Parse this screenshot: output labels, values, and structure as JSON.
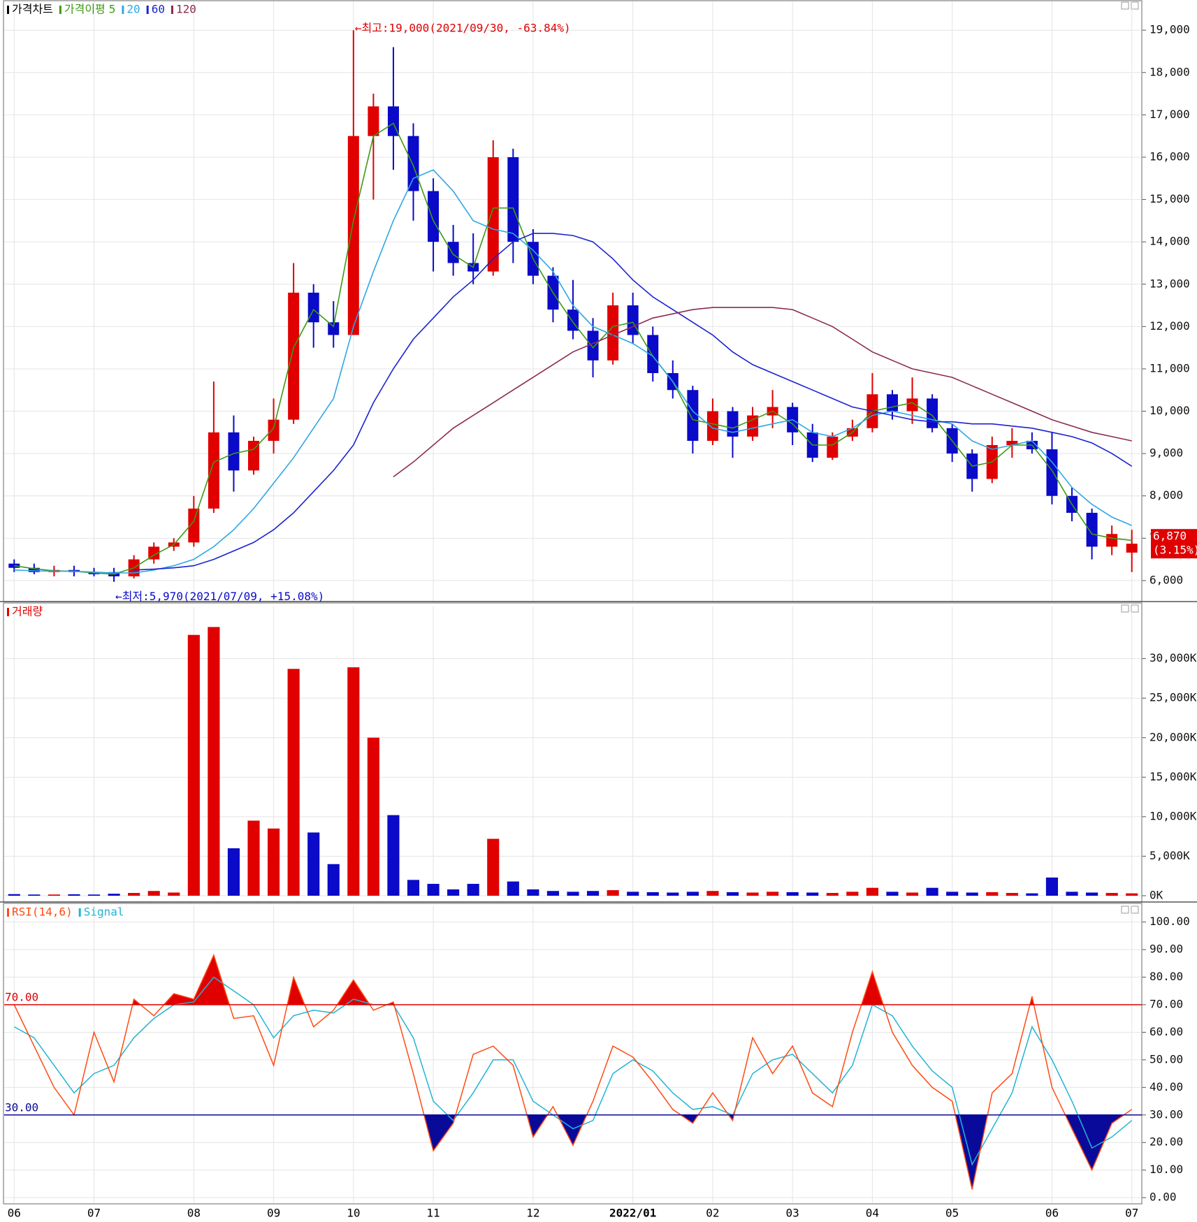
{
  "chart_data": [
    {
      "type": "candlestick",
      "title": "가격차트",
      "ma_label": "가격이평",
      "categories": [
        "06",
        null,
        null,
        null,
        "07",
        null,
        null,
        null,
        null,
        "08",
        null,
        null,
        null,
        "09",
        null,
        null,
        null,
        "10",
        null,
        null,
        null,
        "11",
        null,
        null,
        null,
        null,
        "12",
        null,
        null,
        null,
        null,
        "2022/01",
        null,
        null,
        null,
        "02",
        null,
        null,
        null,
        "03",
        null,
        null,
        null,
        "04",
        null,
        null,
        null,
        "05",
        null,
        null,
        null,
        null,
        "06",
        null,
        null,
        null,
        "07"
      ],
      "open": [
        6400,
        6300,
        6200,
        6250,
        6200,
        6200,
        6100,
        6500,
        6800,
        6900,
        7700,
        9500,
        8600,
        9300,
        9800,
        12800,
        12100,
        11800,
        16500,
        17200,
        16500,
        15200,
        14000,
        13500,
        13300,
        16000,
        14000,
        13200,
        12400,
        11900,
        11200,
        12500,
        11800,
        10900,
        10500,
        9300,
        10000,
        9400,
        9900,
        10100,
        9500,
        8900,
        9400,
        9600,
        10400,
        10000,
        10300,
        9600,
        9000,
        8400,
        9200,
        9300,
        9100,
        8000,
        7600,
        6800,
        6660
      ],
      "high": [
        6500,
        6400,
        6350,
        6350,
        6300,
        6300,
        6600,
        6900,
        7000,
        8000,
        10700,
        9900,
        9400,
        10300,
        13500,
        13000,
        12600,
        19000,
        17500,
        18600,
        16800,
        15500,
        14400,
        14200,
        16400,
        16200,
        14300,
        13400,
        13100,
        12200,
        12800,
        12800,
        12000,
        11200,
        10600,
        10300,
        10100,
        10100,
        10500,
        10200,
        9700,
        9500,
        9800,
        10900,
        10500,
        10800,
        10400,
        9700,
        9100,
        9400,
        9600,
        9500,
        9500,
        8200,
        7700,
        7300,
        7200
      ],
      "low": [
        6200,
        6150,
        6100,
        6100,
        6100,
        5970,
        6050,
        6400,
        6700,
        6800,
        7600,
        8100,
        8500,
        9000,
        9700,
        11500,
        11500,
        11800,
        15000,
        15700,
        14500,
        13300,
        13200,
        13000,
        13200,
        13500,
        13000,
        12100,
        11700,
        10800,
        11100,
        11600,
        10700,
        10300,
        9000,
        9200,
        8900,
        9300,
        9600,
        9200,
        8800,
        8850,
        9300,
        9500,
        9800,
        9700,
        9500,
        8800,
        8100,
        8300,
        8900,
        9000,
        7800,
        7400,
        6500,
        6600,
        6200
      ],
      "close": [
        6300,
        6200,
        6250,
        6200,
        6150,
        6100,
        6500,
        6800,
        6900,
        7700,
        9500,
        8600,
        9300,
        9800,
        12800,
        12100,
        11800,
        16500,
        17200,
        16500,
        15200,
        14000,
        13500,
        13300,
        16000,
        14000,
        13200,
        12400,
        11900,
        11200,
        12500,
        11800,
        10900,
        10500,
        9300,
        10000,
        9400,
        9900,
        10100,
        9500,
        8900,
        9400,
        9600,
        10400,
        10000,
        10300,
        9600,
        9000,
        8400,
        9200,
        9300,
        9100,
        8000,
        7600,
        6800,
        7100,
        6870
      ],
      "up_color": "#e00000",
      "down_color": "#0a0ac8",
      "title_color": "#000000",
      "series": [
        {
          "name": "5",
          "color": "#3c9a14",
          "values": [
            6350,
            6280,
            6230,
            6220,
            6180,
            6150,
            6300,
            6600,
            6850,
            7400,
            8800,
            9000,
            9100,
            9600,
            11500,
            12400,
            12000,
            14500,
            16500,
            16800,
            15800,
            14500,
            13700,
            13400,
            14800,
            14800,
            13600,
            12800,
            12100,
            11500,
            12000,
            12100,
            11300,
            10700,
            9800,
            9700,
            9600,
            9800,
            10000,
            9700,
            9200,
            9200,
            9500,
            10000,
            10100,
            10200,
            9900,
            9300,
            8700,
            8800,
            9200,
            9200,
            8600,
            7800,
            7100,
            7000,
            6950
          ]
        },
        {
          "name": "20",
          "color": "#2ea6e6",
          "values": [
            6250,
            6230,
            6220,
            6220,
            6200,
            6180,
            6180,
            6250,
            6350,
            6500,
            6800,
            7200,
            7700,
            8300,
            8900,
            9600,
            10300,
            12000,
            13300,
            14500,
            15500,
            15700,
            15200,
            14500,
            14300,
            14200,
            13800,
            13300,
            12500,
            12000,
            11800,
            11600,
            11300,
            10700,
            10000,
            9600,
            9500,
            9600,
            9700,
            9800,
            9500,
            9400,
            9600,
            9900,
            10000,
            9900,
            9800,
            9700,
            9300,
            9100,
            9200,
            9300,
            8800,
            8200,
            7800,
            7500,
            7300
          ]
        },
        {
          "name": "60",
          "color": "#1a22d0",
          "values": [
            null,
            null,
            null,
            null,
            null,
            null,
            6250,
            6270,
            6300,
            6350,
            6500,
            6700,
            6900,
            7200,
            7600,
            8100,
            8600,
            9200,
            10200,
            11000,
            11700,
            12200,
            12700,
            13100,
            13600,
            14000,
            14200,
            14200,
            14150,
            14000,
            13600,
            13100,
            12700,
            12400,
            12100,
            11800,
            11400,
            11100,
            10900,
            10700,
            10500,
            10300,
            10100,
            10000,
            9900,
            9800,
            9750,
            9750,
            9700,
            9700,
            9650,
            9600,
            9500,
            9400,
            9250,
            9000,
            8700
          ]
        },
        {
          "name": "120",
          "color": "#8c2a50",
          "values": [
            null,
            null,
            null,
            null,
            null,
            null,
            null,
            null,
            null,
            null,
            null,
            null,
            null,
            null,
            null,
            null,
            null,
            null,
            null,
            8450,
            8800,
            9200,
            9600,
            9900,
            10200,
            10500,
            10800,
            11100,
            11400,
            11600,
            11800,
            12000,
            12200,
            12300,
            12400,
            12450,
            12450,
            12450,
            12450,
            12400,
            12200,
            12000,
            11700,
            11400,
            11200,
            11000,
            10900,
            10800,
            10600,
            10400,
            10200,
            10000,
            9800,
            9650,
            9500,
            9400,
            9300
          ]
        }
      ],
      "high_note": "←최고:19,000(2021/09/30, -63.84%)",
      "high_note_color": "#e00000",
      "low_note": "←최저:5,970(2021/07/09, +15.08%)",
      "low_note_color": "#0a0ac8",
      "last_label": "6,870",
      "last_change": "(3.15%)",
      "last_color": "#e00000",
      "ylim": [
        5520,
        19680
      ],
      "yticks": [
        {
          "value": 6000,
          "label": "6,000"
        },
        {
          "value": 7000,
          "label": "7,000"
        },
        {
          "value": 8000,
          "label": "8,000"
        },
        {
          "value": 9000,
          "label": "9,000"
        },
        {
          "value": 10000,
          "label": "10,000"
        },
        {
          "value": 11000,
          "label": "11,000"
        },
        {
          "value": 12000,
          "label": "12,000"
        },
        {
          "value": 13000,
          "label": "13,000"
        },
        {
          "value": 14000,
          "label": "14,000"
        },
        {
          "value": 15000,
          "label": "15,000"
        },
        {
          "value": 16000,
          "label": "16,000"
        },
        {
          "value": 17000,
          "label": "17,000"
        },
        {
          "value": 18000,
          "label": "18,000"
        },
        {
          "value": 19000,
          "label": "19,000"
        }
      ],
      "grid": true
    },
    {
      "type": "bar",
      "title": "거래량",
      "title_color": "#e00000",
      "values": [
        200,
        150,
        150,
        180,
        150,
        250,
        350,
        600,
        400,
        33000,
        34000,
        6000,
        9500,
        8500,
        28700,
        8000,
        4000,
        28900,
        20000,
        10200,
        2000,
        1500,
        800,
        1500,
        7200,
        1800,
        800,
        600,
        500,
        600,
        700,
        500,
        450,
        400,
        500,
        600,
        450,
        400,
        500,
        450,
        400,
        350,
        500,
        1000,
        500,
        400,
        1000,
        500,
        400,
        450,
        350,
        300,
        2300,
        500,
        400,
        350,
        300
      ],
      "ylim": [
        0,
        36600
      ],
      "yticks": [
        {
          "value": 0,
          "label": "0K"
        },
        {
          "value": 5000,
          "label": "5,000K"
        },
        {
          "value": 10000,
          "label": "10,000K"
        },
        {
          "value": 15000,
          "label": "15,000K"
        },
        {
          "value": 20000,
          "label": "20,000K"
        },
        {
          "value": 25000,
          "label": "25,000K"
        },
        {
          "value": 30000,
          "label": "30,000K"
        }
      ],
      "grid": true
    },
    {
      "type": "line",
      "series": [
        {
          "name": "RSI(14,6)",
          "color": "#ff4a10",
          "values": [
            70,
            55,
            40,
            30,
            60,
            42,
            72,
            66,
            74,
            72,
            88,
            65,
            66,
            48,
            80,
            62,
            68,
            79,
            68,
            71,
            45,
            17,
            27,
            52,
            55,
            48,
            22,
            33,
            19,
            35,
            55,
            51,
            42,
            32,
            27,
            38,
            28,
            58,
            45,
            55,
            38,
            33,
            60,
            82,
            60,
            48,
            40,
            35,
            3,
            38,
            45,
            73,
            40,
            25,
            10,
            27,
            32
          ]
        },
        {
          "name": "Signal",
          "color": "#22b4d4",
          "values": [
            62,
            58,
            48,
            38,
            45,
            48,
            58,
            65,
            70,
            71,
            80,
            75,
            70,
            58,
            66,
            68,
            67,
            72,
            70,
            70,
            58,
            35,
            28,
            38,
            50,
            50,
            35,
            30,
            25,
            28,
            45,
            50,
            46,
            38,
            32,
            33,
            30,
            45,
            50,
            52,
            45,
            38,
            48,
            70,
            66,
            55,
            46,
            40,
            12,
            25,
            38,
            62,
            50,
            35,
            18,
            22,
            28
          ]
        }
      ],
      "reference_lines": [
        {
          "value": 70,
          "label": "70.00",
          "color": "#e00000"
        },
        {
          "value": 30,
          "label": "30.00",
          "color": "#0a0a9a"
        }
      ],
      "ylim": [
        -2,
        106
      ],
      "yticks": [
        {
          "value": 0,
          "label": "0.00"
        },
        {
          "value": 10,
          "label": "10.00"
        },
        {
          "value": 20,
          "label": "20.00"
        },
        {
          "value": 30,
          "label": "30.00"
        },
        {
          "value": 40,
          "label": "40.00"
        },
        {
          "value": 50,
          "label": "50.00"
        },
        {
          "value": 60,
          "label": "60.00"
        },
        {
          "value": 70,
          "label": "70.00"
        },
        {
          "value": 80,
          "label": "80.00"
        },
        {
          "value": 90,
          "label": "90.00"
        },
        {
          "value": 100,
          "label": "100.00"
        }
      ],
      "grid": true
    }
  ]
}
